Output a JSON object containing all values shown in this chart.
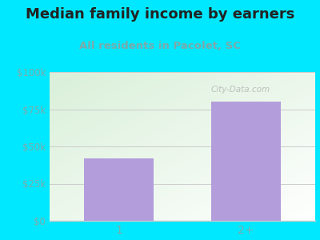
{
  "title": "Median family income by earners",
  "subtitle": "All residents in Pacolet, SC",
  "categories": [
    "1",
    "2+"
  ],
  "values": [
    42000,
    80000
  ],
  "bar_color": "#b39ddb",
  "background_outer": "#00e8ff",
  "ylim": [
    0,
    100000
  ],
  "yticks": [
    0,
    25000,
    50000,
    75000,
    100000
  ],
  "ytick_labels": [
    "$0",
    "$25k",
    "$50k",
    "$75k",
    "$100k"
  ],
  "title_fontsize": 13,
  "subtitle_fontsize": 9.5,
  "tick_color": "#7aaaaa",
  "axis_label_color": "#7aacac",
  "watermark": "City-Data.com",
  "title_color": "#222222",
  "grid_color": "#cccccc",
  "bar_width": 0.55
}
